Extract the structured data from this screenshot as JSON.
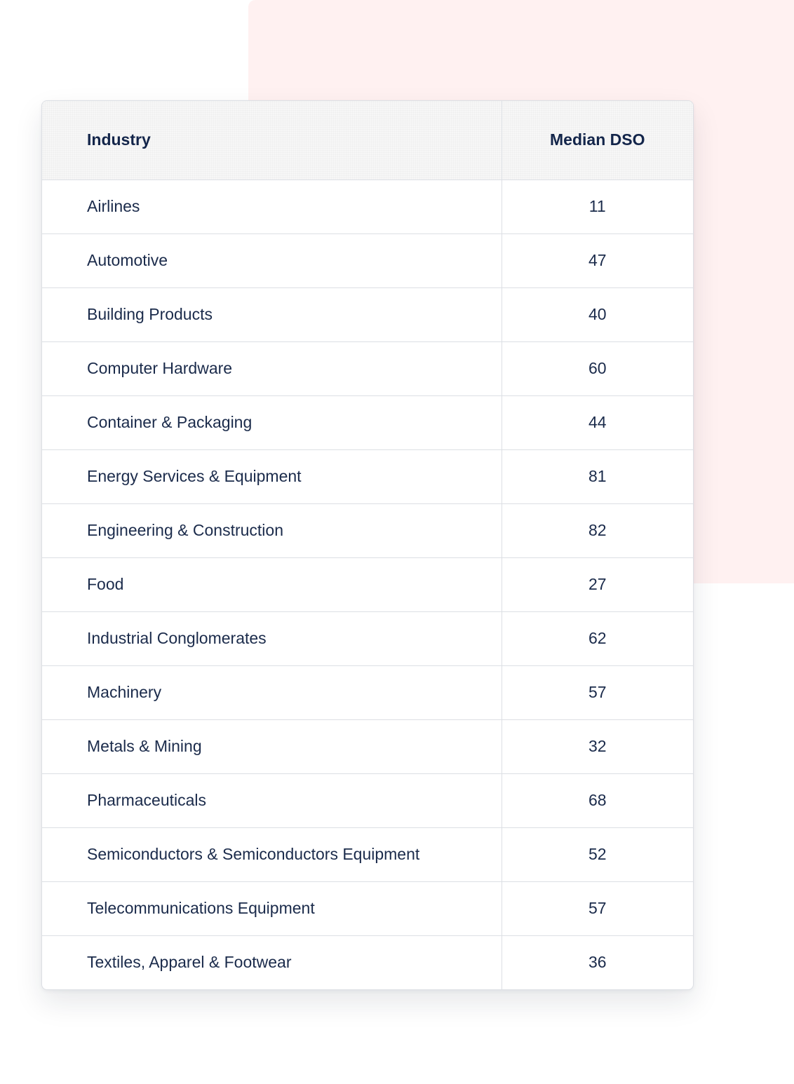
{
  "colors": {
    "accent_background": "#fff1f1",
    "text": "#1b2b4b",
    "border": "#dcdfe4"
  },
  "table": {
    "headers": {
      "industry": "Industry",
      "median_dso": "Median DSO"
    },
    "rows": [
      {
        "industry": "Airlines",
        "median_dso": "11"
      },
      {
        "industry": "Automotive",
        "median_dso": "47"
      },
      {
        "industry": "Building Products",
        "median_dso": "40"
      },
      {
        "industry": "Computer Hardware",
        "median_dso": "60"
      },
      {
        "industry": "Container & Packaging",
        "median_dso": "44"
      },
      {
        "industry": "Energy Services & Equipment",
        "median_dso": "81"
      },
      {
        "industry": "Engineering & Construction",
        "median_dso": "82"
      },
      {
        "industry": "Food",
        "median_dso": "27"
      },
      {
        "industry": "Industrial Conglomerates",
        "median_dso": "62"
      },
      {
        "industry": "Machinery",
        "median_dso": "57"
      },
      {
        "industry": "Metals & Mining",
        "median_dso": "32"
      },
      {
        "industry": "Pharmaceuticals",
        "median_dso": "68"
      },
      {
        "industry": "Semiconductors & Semiconductors Equipment",
        "median_dso": "52"
      },
      {
        "industry": "Telecommunications Equipment",
        "median_dso": "57"
      },
      {
        "industry": "Textiles, Apparel & Footwear",
        "median_dso": "36"
      }
    ]
  }
}
